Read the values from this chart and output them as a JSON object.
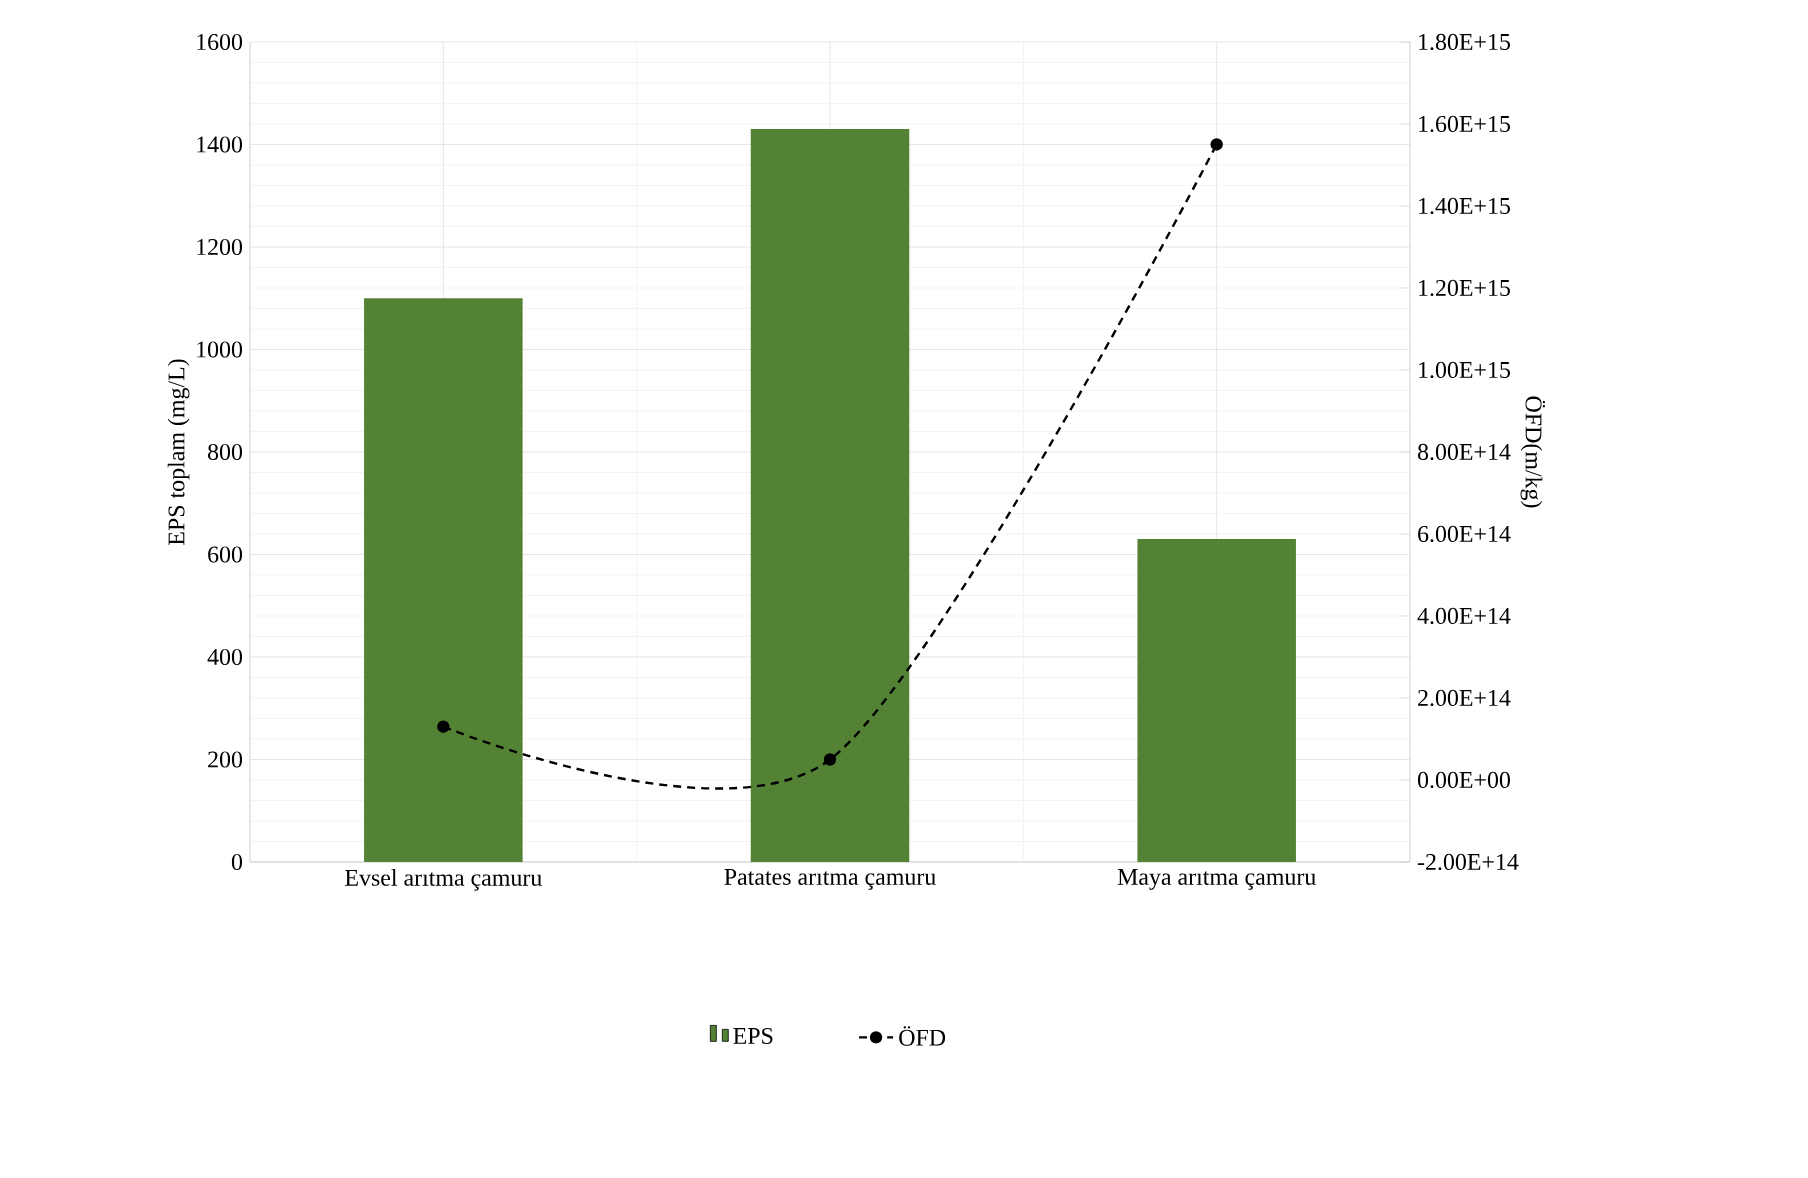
{
  "chart_data": {
    "type": "bar",
    "categories": [
      "Evsel arıtma çamuru",
      "Patates arıtma çamuru",
      "Maya arıtma çamuru"
    ],
    "ylabel": "EPS toplam (mg/L)",
    "y2label": "ÖFD(m/kg)",
    "series": [
      {
        "name": "EPS",
        "color": "#548235",
        "values": [
          1100,
          1430,
          630
        ]
      },
      {
        "name": "ÖFD",
        "type": "line",
        "axis": "y2",
        "color": "#000000",
        "marker": "circle",
        "line_style": "dashed",
        "values": [
          130000000000000.0,
          50000000000000.0,
          1550000000000000.0
        ]
      }
    ],
    "ylim": [
      0,
      1600
    ],
    "yticks": [
      0,
      200,
      400,
      600,
      800,
      1000,
      1200,
      1400,
      1600
    ],
    "y2lim": [
      -200000000000000.0,
      1800000000000000.0
    ],
    "y2ticks": [
      {
        "value": -200000000000000.0,
        "label": "-2.00E+14"
      },
      {
        "value": 0,
        "label": "0.00E+00"
      },
      {
        "value": 200000000000000.0,
        "label": "2.00E+14"
      },
      {
        "value": 400000000000000.0,
        "label": "4.00E+14"
      },
      {
        "value": 600000000000000.0,
        "label": "6.00E+14"
      },
      {
        "value": 800000000000000.0,
        "label": "8.00E+14"
      },
      {
        "value": 1000000000000000.0,
        "label": "1.00E+15"
      },
      {
        "value": 1200000000000000.0,
        "label": "1.20E+15"
      },
      {
        "value": 1400000000000000.0,
        "label": "1.40E+15"
      },
      {
        "value": 1600000000000000.0,
        "label": "1.60E+15"
      },
      {
        "value": 1800000000000000.0,
        "label": "1.80E+15"
      }
    ],
    "grid": true,
    "legend": "bottom"
  }
}
